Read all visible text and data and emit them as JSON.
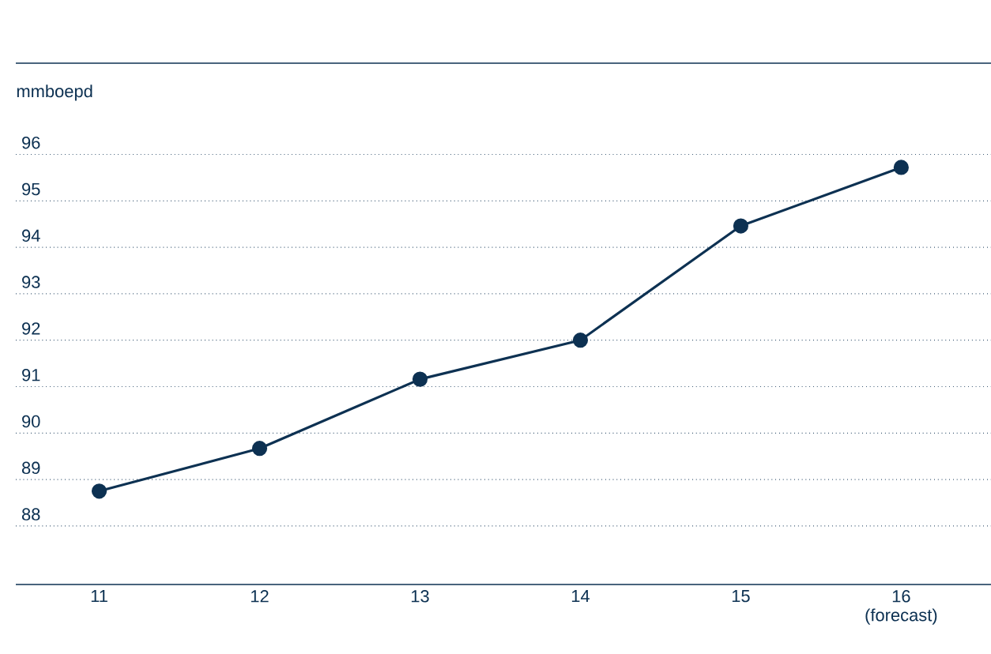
{
  "chart_data": {
    "type": "line",
    "ylabel": "mmboepd",
    "categories": [
      "11",
      "12",
      "13",
      "14",
      "15",
      "16 (forecast)"
    ],
    "series": [
      {
        "color": "#0d3152",
        "values": [
          88.75,
          89.67,
          91.16,
          92.0,
          94.46,
          95.72
        ]
      }
    ],
    "ylim": [
      86.74,
      96
    ],
    "yticks": [
      88,
      89,
      90,
      91,
      92,
      93,
      94,
      95,
      96
    ],
    "grid": "y",
    "marker": "circle",
    "line_style": "solid"
  }
}
